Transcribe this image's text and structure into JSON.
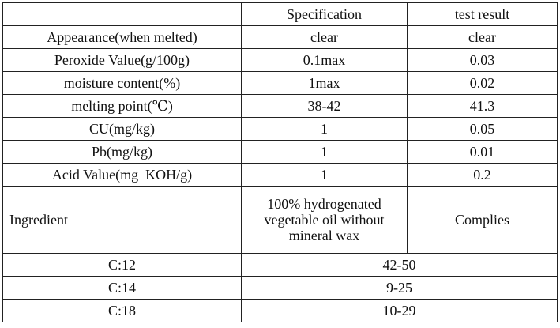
{
  "header": {
    "col1": "",
    "col2": "Specification",
    "col3": "test result"
  },
  "rows": [
    {
      "item": "Appearance(when melted)",
      "spec": "clear",
      "result": "clear"
    },
    {
      "item": "Peroxide Value(g/100g)",
      "spec": "0.1max",
      "result": "0.03"
    },
    {
      "item": "moisture content(%)",
      "spec": "1max",
      "result": "0.02"
    },
    {
      "item": "melting point(℃)",
      "spec": "38-42",
      "result": "41.3"
    },
    {
      "item": "CU(mg/kg)",
      "spec": "1",
      "result": "0.05"
    },
    {
      "item": "Pb(mg/kg)",
      "spec": "1",
      "result": "0.01"
    },
    {
      "item": "Acid Value(mg  KOH/g)",
      "spec": "1",
      "result": "0.2"
    }
  ],
  "ingredient": {
    "item": "Ingredient",
    "spec": "100% hydrogenated vegetable oil without mineral wax",
    "result": "Complies"
  },
  "fatty_acids": [
    {
      "item": "C:12",
      "range": "42-50"
    },
    {
      "item": "C:14",
      "range": "9-25"
    },
    {
      "item": "C:18",
      "range": "10-29"
    }
  ]
}
